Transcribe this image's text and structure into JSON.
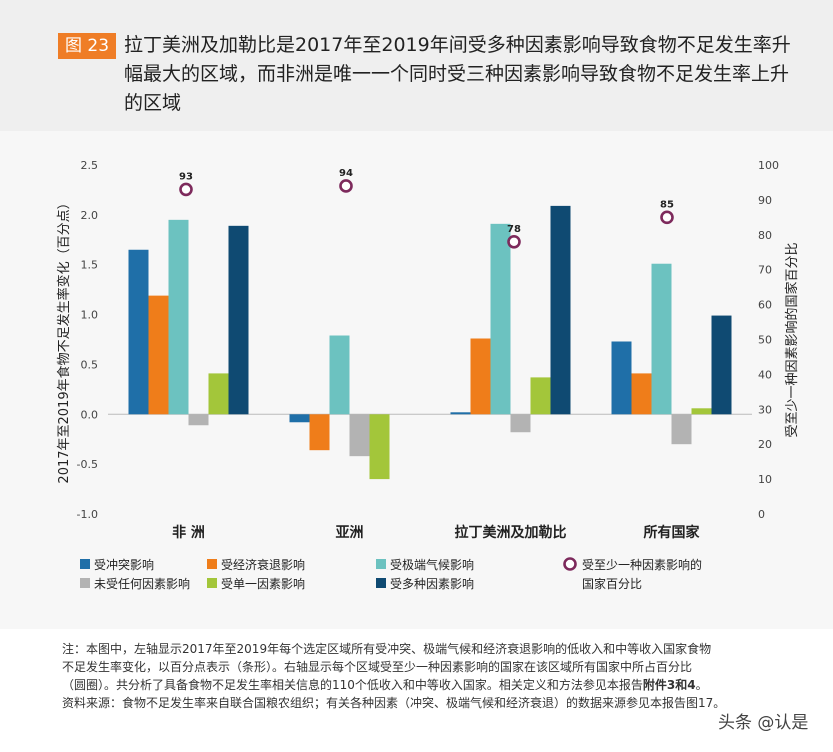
{
  "figure": {
    "badge": "图 23",
    "title": "拉丁美洲及加勒比是2017年至2019年间受多种因素影响导致食物不足发生率升幅最大的区域，而非洲是唯一一个同时受三种因素影响导致食物不足发生率上升的区域"
  },
  "chart_data": {
    "type": "bar",
    "categories": [
      "非 洲",
      "亚洲",
      "拉丁美洲及加勒比",
      "所有国家"
    ],
    "ylabel": "2017年至2019年食物不足发生率变化（百分点）",
    "y2label": "受至少一种因素影响的国家百分比",
    "ylim": [
      -1.0,
      2.5
    ],
    "yticks": [
      "2.5",
      "2.0",
      "1.5",
      "1.0",
      "0.5",
      "0.0",
      "-0.5",
      "-1.0"
    ],
    "y2lim": [
      0,
      100
    ],
    "y2ticks": [
      "100",
      "90",
      "80",
      "70",
      "60",
      "50",
      "40",
      "30",
      "20",
      "10",
      "0"
    ],
    "series": [
      {
        "name": "受冲突影响",
        "color": "#1f6fa8",
        "values": [
          1.65,
          -0.08,
          0.02,
          0.73
        ]
      },
      {
        "name": "受经济衰退影响",
        "color": "#ef7d1a",
        "values": [
          1.19,
          -0.36,
          0.76,
          0.41
        ]
      },
      {
        "name": "受极端气候影响",
        "color": "#6cc2c0",
        "values": [
          1.95,
          0.79,
          1.91,
          1.51
        ]
      },
      {
        "name": "未受任何因素影响",
        "color": "#b3b3b3",
        "values": [
          -0.11,
          -0.42,
          -0.18,
          -0.3
        ]
      },
      {
        "name": "受单一因素影响",
        "color": "#a3c63a",
        "values": [
          0.41,
          -0.65,
          0.37,
          0.06
        ]
      },
      {
        "name": "受多种因素影响",
        "color": "#0f4a72",
        "values": [
          1.89,
          null,
          2.09,
          0.99
        ]
      }
    ],
    "points": {
      "name": "受至少一种因素影响的国家百分比",
      "color": "#7d2a5c",
      "values": [
        93,
        94,
        78,
        85
      ],
      "labels": [
        "93",
        "94",
        "78",
        "85"
      ]
    },
    "legend": [
      {
        "name": "受冲突影响",
        "kind": "square",
        "color": "#1f6fa8"
      },
      {
        "name": "受经济衰退影响",
        "kind": "square",
        "color": "#ef7d1a"
      },
      {
        "name": "受极端气候影响",
        "kind": "square",
        "color": "#6cc2c0"
      },
      {
        "name": "受至少一种因素影响的",
        "name2": "国家百分比",
        "kind": "circle",
        "color": "#7d2a5c"
      },
      {
        "name": "未受任何因素影响",
        "kind": "square",
        "color": "#b3b3b3"
      },
      {
        "name": "受单一因素影响",
        "kind": "square",
        "color": "#a3c63a"
      },
      {
        "name": "受多种因素影响",
        "kind": "square",
        "color": "#0f4a72"
      }
    ],
    "legend_placement": "bottom",
    "grid": false
  },
  "notes": {
    "note_line1": "注：本图中，左轴显示2017年至2019年每个选定区域所有受冲突、极端气候和经济衰退影响的低收入和中等收入国家食物",
    "note_line2": "不足发生率变化，以百分点表示（条形）。右轴显示每个区域受至少一种因素影响的国家在该区域所有国家中所占百分比",
    "note_line3_a": "（圆圈）。共分析了具备食物不足发生率相关信息的110个低收入和中等收入国家。相关定义和方法参见本报告",
    "note_line3_b": "附件3和4",
    "note_line3_c": "。",
    "source_a": "资料来源：食物不足发生率来自联合国粮农组织；有关各种因素（冲突、极端气候和经济衰退）的数据来源参见本报告图17。",
    "watermark": "头条 @认是"
  }
}
